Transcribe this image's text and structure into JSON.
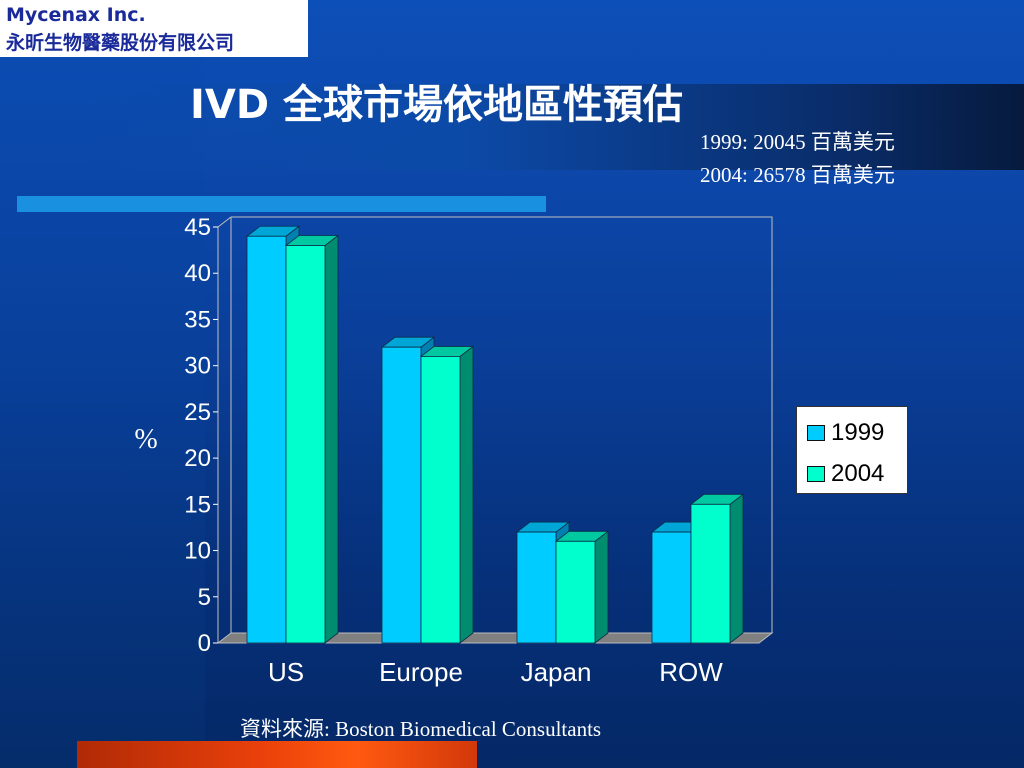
{
  "logo": {
    "company_en": "Mycenax Inc.",
    "company_zh": "永昕生物醫藥股份有限公司"
  },
  "title": "IVD 全球市場依地區性預估",
  "totals": {
    "line1": "1999: 20045 百萬美元",
    "line2": "2004: 26578 百萬美元"
  },
  "source": "資料來源: Boston Biomedical Consultants",
  "colors": {
    "series_1999_front": "#00ccff",
    "series_1999_top": "#00a6d6",
    "series_1999_side": "#0080b0",
    "series_2004_front": "#00ffcc",
    "series_2004_top": "#00c8a0",
    "series_2004_side": "#008c6e",
    "floor": "#808080",
    "plot_frame": "#c0c0c0"
  },
  "chart_data": {
    "type": "bar",
    "categories": [
      "US",
      "Europe",
      "Japan",
      "ROW"
    ],
    "series": [
      {
        "name": "1999",
        "values": [
          44,
          32,
          12,
          12
        ]
      },
      {
        "name": "2004",
        "values": [
          43,
          31,
          11,
          15
        ]
      }
    ],
    "ylabel": "%",
    "ylim": [
      0,
      45
    ],
    "yticks": [
      "0",
      "5",
      "10",
      "15",
      "20",
      "25",
      "30",
      "35",
      "40",
      "45"
    ],
    "legend": {
      "position": "right",
      "entries": [
        "1999",
        "2004"
      ]
    },
    "grid": false,
    "style": "3d-bar"
  }
}
